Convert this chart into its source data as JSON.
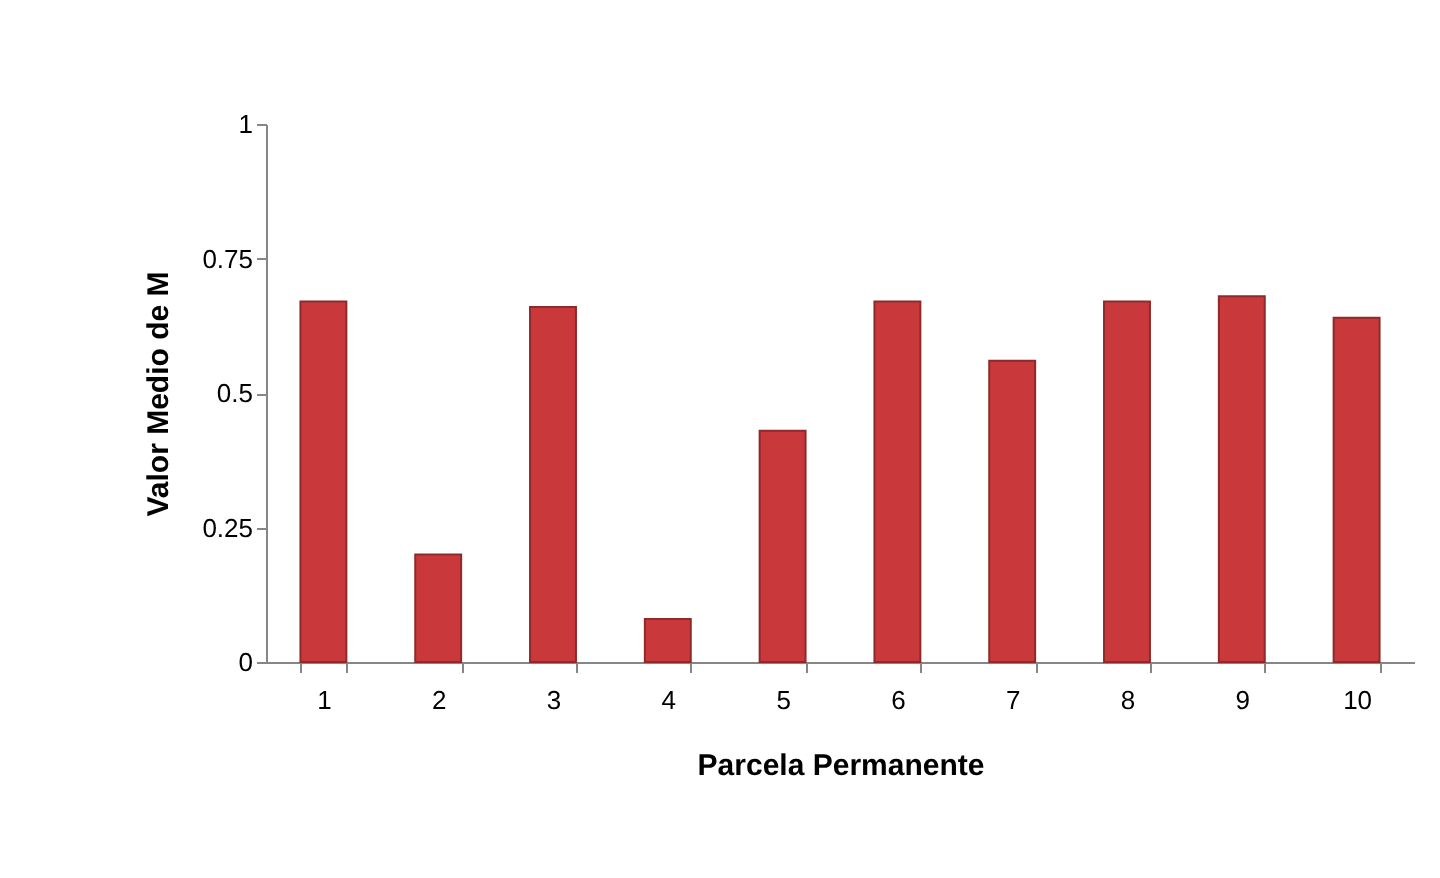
{
  "chart_data": {
    "type": "bar",
    "xlabel": "Parcela Permanente",
    "ylabel": "Valor Medio de M",
    "categories": [
      "1",
      "2",
      "3",
      "4",
      "5",
      "6",
      "7",
      "8",
      "9",
      "10"
    ],
    "values": [
      0.67,
      0.2,
      0.66,
      0.08,
      0.43,
      0.67,
      0.56,
      0.67,
      0.68,
      0.64
    ],
    "color": "#c9383a",
    "ylim": [
      0,
      1
    ],
    "yticks": [
      0,
      0.25,
      0.5,
      0.75,
      1
    ],
    "grid": false
  }
}
